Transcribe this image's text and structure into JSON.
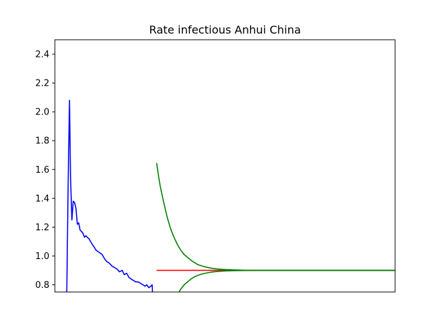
{
  "chart_data": {
    "type": "line",
    "title": "Rate infectious Anhui China",
    "xlabel": "",
    "ylabel": "",
    "ylim": [
      0.75,
      2.5
    ],
    "xlim": [
      0,
      100
    ],
    "grid": false,
    "yticks": [
      "0.8",
      "1.0",
      "1.2",
      "1.4",
      "1.6",
      "1.8",
      "2.0",
      "2.2",
      "2.4"
    ],
    "xticks": [],
    "series": [
      {
        "color": "#0000ff",
        "x": [
          3.5,
          3.9,
          4.3,
          4.6,
          5.0,
          5.4,
          5.8,
          6.2,
          6.6,
          7.0,
          7.4,
          7.8,
          8.2,
          8.7,
          9.1,
          9.5,
          10.0,
          10.5,
          11.0,
          11.6,
          12.1,
          12.7,
          13.3,
          13.9,
          14.6,
          15.3,
          16.0,
          16.8,
          17.5,
          18.2,
          19.0,
          19.8,
          20.4,
          21.1,
          21.8,
          22.4,
          23.1,
          23.8,
          24.5,
          25.2,
          25.9,
          26.5,
          27.0,
          27.6,
          28.2,
          28.6,
          28.7
        ],
        "y": [
          0.75,
          1.5,
          2.08,
          1.55,
          1.25,
          1.38,
          1.37,
          1.33,
          1.22,
          1.23,
          1.18,
          1.17,
          1.16,
          1.13,
          1.14,
          1.13,
          1.12,
          1.1,
          1.08,
          1.06,
          1.04,
          1.03,
          1.02,
          1.01,
          0.98,
          0.96,
          0.95,
          0.93,
          0.92,
          0.91,
          0.89,
          0.9,
          0.87,
          0.88,
          0.85,
          0.84,
          0.83,
          0.82,
          0.82,
          0.81,
          0.8,
          0.79,
          0.8,
          0.78,
          0.79,
          0.8,
          0.75
        ]
      },
      {
        "color": "#ff0000",
        "x": [
          29.9,
          100
        ],
        "y": [
          0.9,
          0.9
        ]
      },
      {
        "color": "#008000",
        "x": [
          29.9,
          30.5,
          31,
          32,
          33,
          34,
          35,
          36,
          37,
          38,
          40,
          42,
          44,
          46,
          48,
          50,
          53,
          56,
          60,
          65,
          70,
          80,
          90,
          100
        ],
        "y": [
          1.645,
          1.55,
          1.48,
          1.37,
          1.27,
          1.19,
          1.13,
          1.08,
          1.04,
          1.01,
          0.97,
          0.94,
          0.925,
          0.915,
          0.909,
          0.906,
          0.903,
          0.901,
          0.9,
          0.9,
          0.9,
          0.9,
          0.9,
          0.9
        ]
      },
      {
        "color": "#008000",
        "x": [
          36.5,
          37,
          38,
          39,
          40,
          41,
          42,
          43,
          44,
          46,
          48,
          50,
          53,
          56,
          60,
          65,
          70,
          80,
          90,
          100
        ],
        "y": [
          0.75,
          0.77,
          0.8,
          0.82,
          0.84,
          0.855,
          0.865,
          0.873,
          0.879,
          0.888,
          0.893,
          0.896,
          0.898,
          0.899,
          0.9,
          0.9,
          0.9,
          0.9,
          0.9,
          0.9
        ]
      }
    ]
  }
}
